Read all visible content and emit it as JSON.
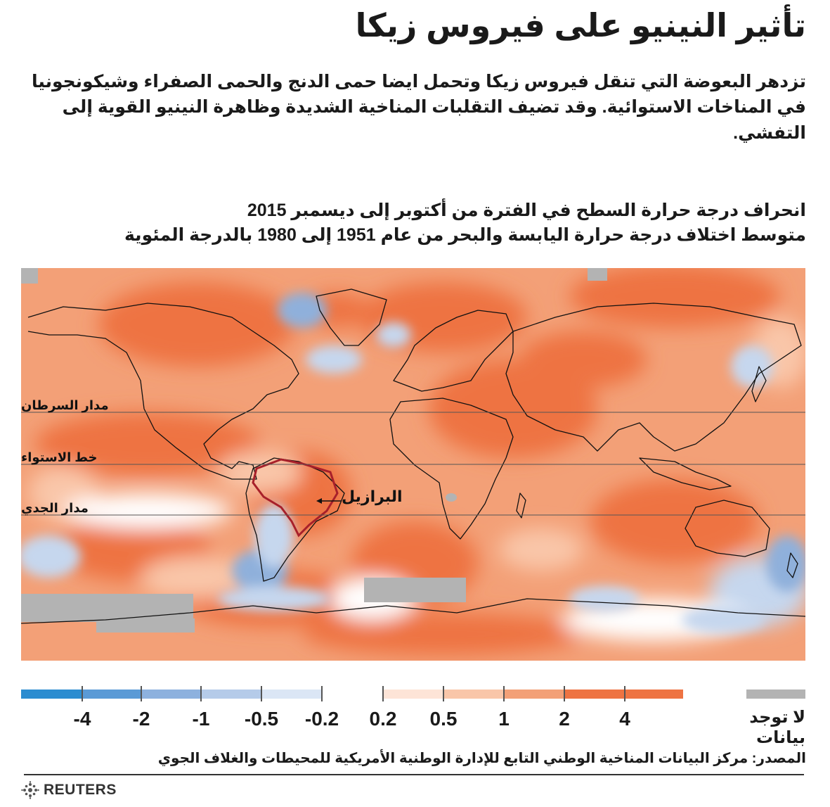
{
  "title": "تأثير النينيو على فيروس زيكا",
  "intro": "تزدهر البعوضة التي تنقل فيروس زيكا وتحمل ايضا حمى الدنج والحمى الصفراء وشيكونجونيا في المناخات الاستوائية. وقد تضيف التقلبات المناخية الشديدة وظاهرة النينيو القوية إلى التفشي.",
  "map": {
    "headline_line1": "انحراف درجة حرارة السطح في الفترة من أكتوبر إلى ديسمبر 2015",
    "headline_line2": "متوسط اختلاف درجة حرارة اليابسة والبحر من عام 1951 إلى 1980 بالدرجة المئوية",
    "reference_lines": {
      "tropic_cancer": "مدار السرطان",
      "equator": "خط الاستواء",
      "tropic_capricorn": "مدار الجدي"
    },
    "highlight_label": "البرازيل",
    "colors": {
      "ocean_warm": "#f3a077",
      "strong_warm": "#ee7342",
      "mild_warm": "#f9c6a9",
      "neutral": "#ffffff",
      "cool": "#c6d7ee",
      "cold": "#8fb0db",
      "no_data": "#b3b3b3",
      "highlight_border": "#a8202a"
    }
  },
  "legend": {
    "ticks": [
      "-4",
      "-2",
      "-1",
      "-0.5",
      "-0.2",
      "0.2",
      "0.5",
      "1",
      "2",
      "4"
    ],
    "bins": [
      {
        "color": "#2b8cd0"
      },
      {
        "color": "#5a9ad6"
      },
      {
        "color": "#8db1de"
      },
      {
        "color": "#b5cbe9"
      },
      {
        "color": "#dbe6f5"
      },
      {
        "color": "#fde4d7"
      },
      {
        "color": "#f9c6a9"
      },
      {
        "color": "#f3a077"
      },
      {
        "color": "#ee7342"
      }
    ],
    "no_data_label": "لا توجد بيانات",
    "no_data_color": "#b3b3b3"
  },
  "source": "المصدر: مركز البيانات المناخية الوطني التابع للإدارة الوطنية الأمريكية للمحيطات والغلاف الجوي",
  "brand": "REUTERS"
}
